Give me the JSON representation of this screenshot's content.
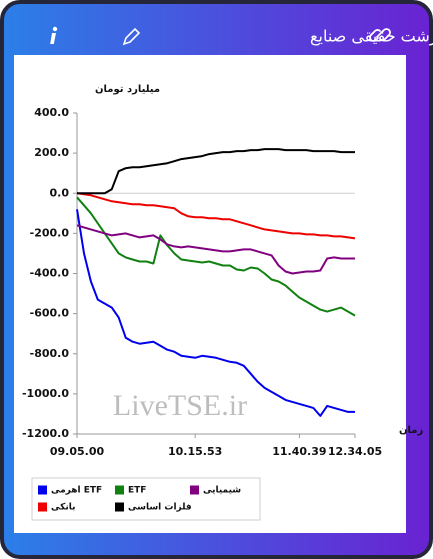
{
  "chart_data": {
    "type": "line",
    "title": "پول درشت حقیقی صنایع",
    "ylabel": "میلیارد تومان",
    "xlabel": "زمان",
    "annotation": "LiveTSE.ir",
    "categories": [
      "09.05.00",
      null,
      null,
      null,
      null,
      null,
      null,
      null,
      null,
      null,
      null,
      null,
      null,
      null,
      null,
      null,
      null,
      "10.15.53",
      null,
      null,
      null,
      null,
      null,
      null,
      null,
      null,
      null,
      null,
      null,
      null,
      null,
      null,
      "11.40.39",
      null,
      null,
      null,
      null,
      null,
      null,
      null,
      "12.34.05"
    ],
    "series": [
      {
        "name": "ETF اهرمی",
        "color": "#0000ee",
        "values": [
          -80,
          -300,
          -440,
          -530,
          -550,
          -570,
          -620,
          -720,
          -740,
          -750,
          -745,
          -740,
          -760,
          -780,
          -790,
          -810,
          -815,
          -820,
          -810,
          -815,
          -820,
          -830,
          -840,
          -845,
          -860,
          -900,
          -940,
          -970,
          -990,
          -1010,
          -1030,
          -1040,
          -1050,
          -1060,
          -1070,
          -1110,
          -1060,
          -1070,
          -1080,
          -1090,
          -1090
        ]
      },
      {
        "name": "ETF",
        "color": "#108010",
        "values": [
          -20,
          -60,
          -100,
          -150,
          -200,
          -250,
          -300,
          -320,
          -330,
          -340,
          -340,
          -350,
          -210,
          -260,
          -300,
          -330,
          -335,
          -340,
          -345,
          -340,
          -350,
          -360,
          -360,
          -380,
          -385,
          -370,
          -375,
          -400,
          -430,
          -440,
          -460,
          -490,
          -520,
          -540,
          -560,
          -580,
          -590,
          -580,
          -570,
          -590,
          -610
        ]
      },
      {
        "name": "شیمیایی",
        "color": "#800080",
        "values": [
          -160,
          -170,
          -180,
          -190,
          -200,
          -210,
          -205,
          -200,
          -210,
          -220,
          -215,
          -210,
          -230,
          -255,
          -265,
          -270,
          -265,
          -270,
          -275,
          -280,
          -285,
          -290,
          -290,
          -285,
          -280,
          -280,
          -290,
          -300,
          -310,
          -360,
          -390,
          -400,
          -395,
          -390,
          -390,
          -385,
          -325,
          -320,
          -325,
          -325,
          -325
        ]
      },
      {
        "name": "بانکی",
        "color": "#ee0000",
        "values": [
          0,
          -5,
          -10,
          -20,
          -30,
          -40,
          -45,
          -50,
          -55,
          -55,
          -60,
          -60,
          -65,
          -70,
          -75,
          -100,
          -115,
          -120,
          -120,
          -125,
          -125,
          -130,
          -130,
          -140,
          -150,
          -160,
          -170,
          -180,
          -185,
          -190,
          -195,
          -200,
          -200,
          -205,
          -205,
          -210,
          -210,
          -215,
          -215,
          -220,
          -225
        ]
      },
      {
        "name": "فلزات اساسی",
        "color": "#000000",
        "values": [
          0,
          0,
          0,
          0,
          0,
          20,
          110,
          125,
          130,
          130,
          135,
          140,
          145,
          150,
          160,
          170,
          175,
          180,
          185,
          195,
          200,
          205,
          205,
          210,
          210,
          215,
          215,
          220,
          220,
          220,
          215,
          215,
          215,
          215,
          210,
          210,
          210,
          210,
          205,
          205,
          205
        ]
      }
    ],
    "ylim": [
      -1200,
      400
    ],
    "yticks": [
      {
        "value": -1200,
        "label": "-1200.0"
      },
      {
        "value": -1000,
        "label": "-1000.0"
      },
      {
        "value": -800,
        "label": "-800.0"
      },
      {
        "value": -600,
        "label": "-600.0"
      },
      {
        "value": -400,
        "label": "-400.0"
      },
      {
        "value": -200,
        "label": "-200.0"
      },
      {
        "value": 0,
        "label": "0.0"
      },
      {
        "value": 200,
        "label": "200.0"
      },
      {
        "value": 400,
        "label": "400.0"
      }
    ],
    "grid": false
  }
}
